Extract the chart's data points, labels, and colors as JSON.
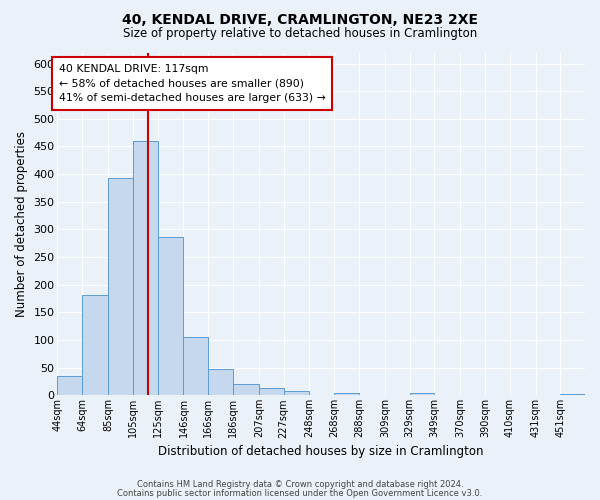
{
  "title": "40, KENDAL DRIVE, CRAMLINGTON, NE23 2XE",
  "subtitle": "Size of property relative to detached houses in Cramlington",
  "xlabel": "Distribution of detached houses by size in Cramlington",
  "ylabel": "Number of detached properties",
  "bar_color": "#c5d8ed",
  "bar_edge_color": "#5b9bd5",
  "background_color": "#eaf1f8",
  "grid_color": "#ffffff",
  "bin_labels": [
    "44sqm",
    "64sqm",
    "85sqm",
    "105sqm",
    "125sqm",
    "146sqm",
    "166sqm",
    "186sqm",
    "207sqm",
    "227sqm",
    "248sqm",
    "268sqm",
    "288sqm",
    "309sqm",
    "329sqm",
    "349sqm",
    "370sqm",
    "390sqm",
    "410sqm",
    "431sqm",
    "451sqm"
  ],
  "bar_values": [
    35,
    182,
    393,
    460,
    287,
    105,
    47,
    20,
    14,
    8,
    0,
    4,
    0,
    0,
    5,
    0,
    0,
    0,
    0,
    0,
    2
  ],
  "ylim": [
    0,
    620
  ],
  "yticks": [
    0,
    50,
    100,
    150,
    200,
    250,
    300,
    350,
    400,
    450,
    500,
    550,
    600
  ],
  "property_line_x": 117,
  "bin_edges_sqm": [
    44,
    64,
    85,
    105,
    125,
    146,
    166,
    186,
    207,
    227,
    248,
    268,
    288,
    309,
    329,
    349,
    370,
    390,
    410,
    431,
    451,
    471
  ],
  "annotation_title": "40 KENDAL DRIVE: 117sqm",
  "annotation_line1": "← 58% of detached houses are smaller (890)",
  "annotation_line2": "41% of semi-detached houses are larger (633) →",
  "annotation_box_color": "#ffffff",
  "annotation_box_edge_color": "#cc0000",
  "red_line_color": "#cc0000",
  "footer1": "Contains HM Land Registry data © Crown copyright and database right 2024.",
  "footer2": "Contains public sector information licensed under the Open Government Licence v3.0."
}
